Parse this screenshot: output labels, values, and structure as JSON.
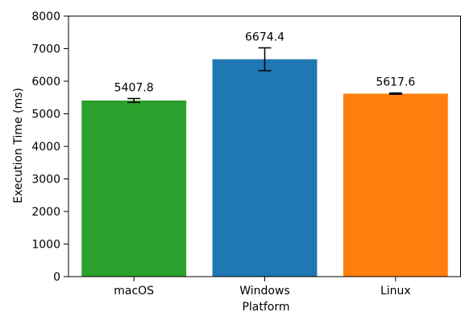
{
  "chart_data": {
    "type": "bar",
    "title": "",
    "xlabel": "Platform",
    "ylabel": "Execution Time (ms)",
    "categories": [
      "macOS",
      "Windows",
      "Linux"
    ],
    "values": [
      5407.8,
      6674.4,
      5617.6
    ],
    "value_labels": [
      "5407.8",
      "6674.4",
      "5617.6"
    ],
    "error": [
      60,
      350,
      20
    ],
    "colors": [
      "#2ca02c",
      "#1f77b4",
      "#ff7f0e"
    ],
    "ylim": [
      0,
      8000
    ],
    "yticks": [
      0,
      1000,
      2000,
      3000,
      4000,
      5000,
      6000,
      7000,
      8000
    ],
    "ytick_labels": [
      "0",
      "1000",
      "2000",
      "3000",
      "4000",
      "5000",
      "6000",
      "7000",
      "8000"
    ],
    "grid": false,
    "legend": "none"
  }
}
